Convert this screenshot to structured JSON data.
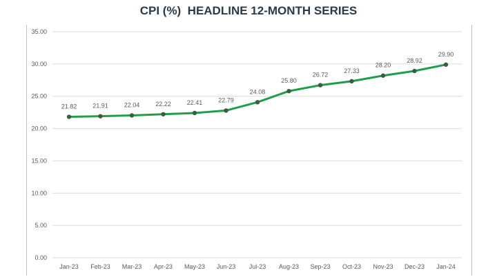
{
  "chart_data": {
    "type": "line",
    "title": "CPI (%)  HEADLINE 12-MONTH SERIES",
    "xlabel": "",
    "ylabel": "",
    "categories": [
      "Jan-23",
      "Feb-23",
      "Mar-23",
      "Apr-23",
      "May-23",
      "Jun-23",
      "Jul-23",
      "Aug-23",
      "Sep-23",
      "Oct-23",
      "Nov-23",
      "Dec-23",
      "Jan-24"
    ],
    "values": [
      21.82,
      21.91,
      22.04,
      22.22,
      22.41,
      22.79,
      24.08,
      25.8,
      26.72,
      27.33,
      28.2,
      28.92,
      29.9
    ],
    "data_labels": [
      "21.82",
      "21.91",
      "22.04",
      "22.22",
      "22.41",
      "22.79",
      "24.08",
      "25.80",
      "26.72",
      "27.33",
      "28.20",
      "28.92",
      "29.90"
    ],
    "yticks": [
      "0.00",
      "5.00",
      "10.00",
      "15.00",
      "20.00",
      "25.00",
      "30.00",
      "35.00"
    ],
    "ylim": [
      0,
      35
    ],
    "grid": true,
    "legend": "none",
    "line_color": "#1f9e4a",
    "marker_color": "#3d5a45"
  }
}
